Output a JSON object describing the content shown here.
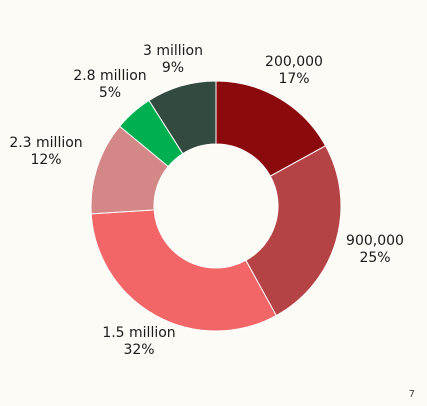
{
  "chart_data": {
    "type": "pie",
    "donut": true,
    "series": [
      {
        "value_label": "200,000",
        "percent": 17,
        "percent_label": "17%",
        "color": "#8b0a0e"
      },
      {
        "value_label": "900,000",
        "percent": 25,
        "percent_label": "25%",
        "color": "#b54245"
      },
      {
        "value_label": "1.5 million",
        "percent": 32,
        "percent_label": "32%",
        "color": "#f26668"
      },
      {
        "value_label": "2.3 million",
        "percent": 12,
        "percent_label": "12%",
        "color": "#d38786"
      },
      {
        "value_label": "2.8 million",
        "percent": 5,
        "percent_label": "5%",
        "color": "#00b050"
      },
      {
        "value_label": "3 million",
        "percent": 9,
        "percent_label": "9%",
        "color": "#334a3e"
      }
    ]
  },
  "page_number": "7"
}
